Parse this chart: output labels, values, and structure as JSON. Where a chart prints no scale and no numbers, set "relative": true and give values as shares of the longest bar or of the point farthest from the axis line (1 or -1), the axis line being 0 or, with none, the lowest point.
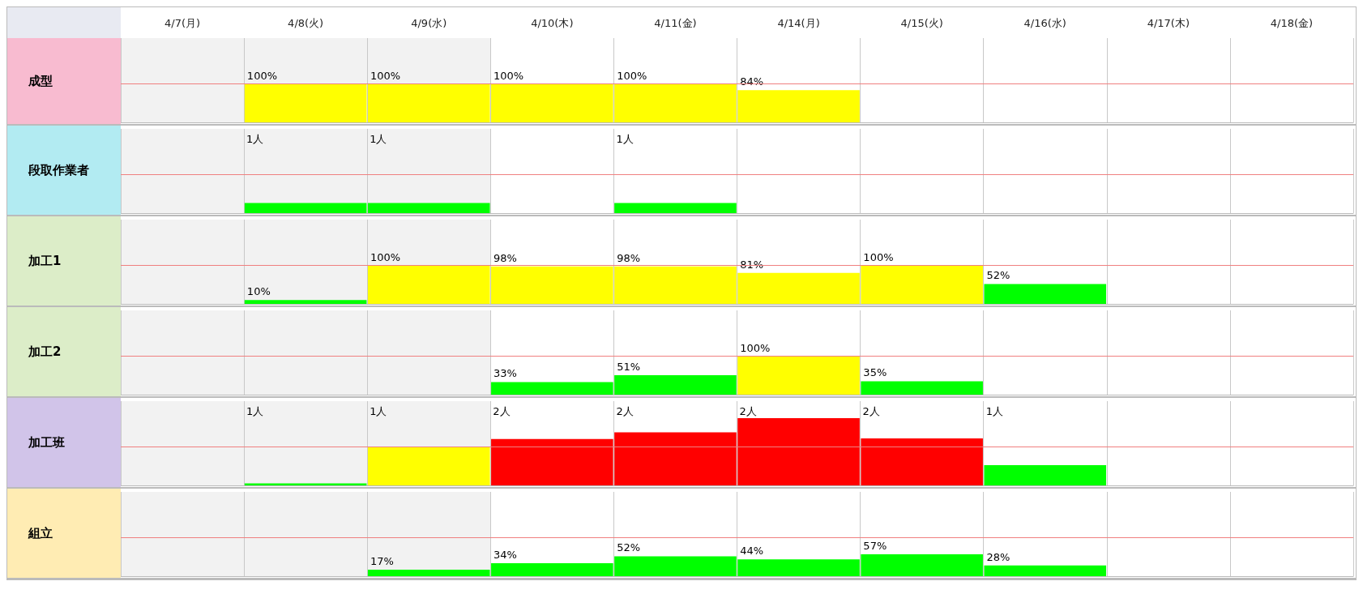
{
  "chart_data": [
    {
      "type": "bar",
      "title": "成型",
      "categories": [
        "4/7(月)",
        "4/8(火)",
        "4/9(水)",
        "4/10(木)",
        "4/11(金)",
        "4/14(月)",
        "4/15(火)",
        "4/16(水)",
        "4/17(木)",
        "4/18(金)"
      ],
      "values": [
        null,
        100,
        100,
        100,
        100,
        84,
        null,
        null,
        null,
        null
      ],
      "colors": [
        null,
        "#ffff00",
        "#ffff00",
        "#ffff00",
        "#ffff00",
        "#ffff00",
        null,
        null,
        null,
        null
      ],
      "value_labels": [
        null,
        "100%",
        "100%",
        "100%",
        "100%",
        "84%",
        null,
        null,
        null,
        null
      ],
      "ref_lines": [
        {
          "axis": "y",
          "value": 100,
          "color": "#f08080"
        }
      ],
      "bands": [
        {
          "axis": "x",
          "from": "4/7(月)",
          "to": "4/9(水)",
          "color": "#f2f2f2"
        }
      ],
      "tick_labels": "x"
    },
    {
      "type": "bar",
      "title": "段取作業者",
      "categories": [
        "4/7(月)",
        "4/8(火)",
        "4/9(水)",
        "4/10(木)",
        "4/11(金)",
        "4/14(月)",
        "4/15(火)",
        "4/16(水)",
        "4/17(木)",
        "4/18(金)"
      ],
      "relative": true,
      "values": [
        null,
        1,
        1,
        null,
        1,
        null,
        null,
        null,
        null,
        null
      ],
      "colors": [
        null,
        "#00ff00",
        "#00ff00",
        null,
        "#00ff00",
        null,
        null,
        null,
        null,
        null
      ],
      "annotations": [
        "1人",
        "1人",
        "1人"
      ],
      "ref_lines": [
        {
          "axis": "y",
          "value": 3.75,
          "color": "#f08080"
        }
      ],
      "bands": [
        {
          "axis": "x",
          "from": "4/7(月)",
          "to": "4/9(水)",
          "color": "#f2f2f2"
        }
      ],
      "tick_labels": false
    },
    {
      "type": "bar",
      "title": "加工1",
      "categories": [
        "4/7(月)",
        "4/8(火)",
        "4/9(水)",
        "4/10(木)",
        "4/11(金)",
        "4/14(月)",
        "4/15(火)",
        "4/16(水)",
        "4/17(木)",
        "4/18(金)"
      ],
      "values": [
        null,
        10,
        100,
        98,
        98,
        81,
        100,
        52,
        null,
        null
      ],
      "colors": [
        null,
        "#00ff00",
        "#ffff00",
        "#ffff00",
        "#ffff00",
        "#ffff00",
        "#ffff00",
        "#00ff00",
        null,
        null
      ],
      "value_labels": [
        null,
        "10%",
        "100%",
        "98%",
        "98%",
        "81%",
        "100%",
        "52%",
        null,
        null
      ],
      "ref_lines": [
        {
          "axis": "y",
          "value": 100,
          "color": "#f08080"
        }
      ],
      "bands": [
        {
          "axis": "x",
          "from": "4/7(月)",
          "to": "4/9(水)",
          "color": "#f2f2f2"
        }
      ],
      "tick_labels": false
    },
    {
      "type": "bar",
      "title": "加工2",
      "categories": [
        "4/7(月)",
        "4/8(火)",
        "4/9(水)",
        "4/10(木)",
        "4/11(金)",
        "4/14(月)",
        "4/15(火)",
        "4/16(水)",
        "4/17(木)",
        "4/18(金)"
      ],
      "values": [
        null,
        null,
        null,
        33,
        51,
        100,
        35,
        null,
        null,
        null
      ],
      "colors": [
        null,
        null,
        null,
        "#00ff00",
        "#00ff00",
        "#ffff00",
        "#00ff00",
        null,
        null,
        null
      ],
      "value_labels": [
        null,
        null,
        null,
        "33%",
        "51%",
        "100%",
        "35%",
        null,
        null,
        null
      ],
      "ref_lines": [
        {
          "axis": "y",
          "value": 100,
          "color": "#f08080"
        }
      ],
      "bands": [
        {
          "axis": "x",
          "from": "4/7(月)",
          "to": "4/9(水)",
          "color": "#f2f2f2"
        }
      ],
      "tick_labels": false
    },
    {
      "type": "bar",
      "title": "加工班",
      "categories": [
        "4/7(月)",
        "4/8(火)",
        "4/9(水)",
        "4/10(木)",
        "4/11(金)",
        "4/14(月)",
        "4/15(火)",
        "4/16(水)",
        "4/17(木)",
        "4/18(金)"
      ],
      "relative": true,
      "values": [
        null,
        0.03,
        0.57,
        0.69,
        0.79,
        1,
        0.7,
        0.3,
        null,
        null
      ],
      "colors": [
        null,
        "#00ff00",
        "#ffff00",
        "#ff0000",
        "#ff0000",
        "#ff0000",
        "#ff0000",
        "#00ff00",
        null,
        null
      ],
      "annotations": [
        "1人",
        "1人",
        "2人",
        "2人",
        "2人",
        "2人",
        "1人"
      ],
      "ref_lines": [
        {
          "axis": "y",
          "value": 0.57,
          "color": "#f08080"
        }
      ],
      "bands": [
        {
          "axis": "x",
          "from": "4/7(月)",
          "to": "4/9(水)",
          "color": "#f2f2f2"
        }
      ],
      "tick_labels": false
    },
    {
      "type": "bar",
      "title": "組立",
      "categories": [
        "4/7(月)",
        "4/8(火)",
        "4/9(水)",
        "4/10(木)",
        "4/11(金)",
        "4/14(月)",
        "4/15(火)",
        "4/16(水)",
        "4/17(木)",
        "4/18(金)"
      ],
      "values": [
        null,
        null,
        17,
        34,
        52,
        44,
        57,
        28,
        null,
        null
      ],
      "colors": [
        null,
        null,
        "#00ff00",
        "#00ff00",
        "#00ff00",
        "#00ff00",
        "#00ff00",
        "#00ff00",
        null,
        null
      ],
      "value_labels": [
        null,
        null,
        "17%",
        "34%",
        "52%",
        "44%",
        "57%",
        "28%",
        null,
        null
      ],
      "ref_lines": [
        {
          "axis": "y",
          "value": 100,
          "color": "#f08080"
        }
      ],
      "bands": [
        {
          "axis": "x",
          "from": "4/7(月)",
          "to": "4/9(水)",
          "color": "#f2f2f2"
        }
      ],
      "tick_labels": false
    }
  ]
}
